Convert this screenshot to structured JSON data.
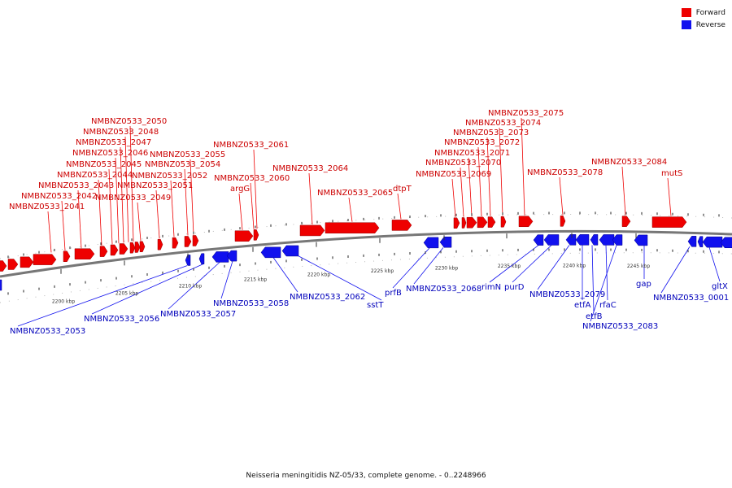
{
  "legend": {
    "forward_label": "Forward",
    "reverse_label": "Reverse",
    "forward_color": "#ee0000",
    "reverse_color": "#1111ee"
  },
  "caption": "Neisseria meningitidis NZ-05/33, complete genome. - 0..2248966",
  "ticks": [
    "2200 kbp",
    "2205 kbp",
    "2210 kbp",
    "2215 kbp",
    "2220 kbp",
    "2225 kbp",
    "2230 kbp",
    "2235 kbp",
    "2240 kbp",
    "2245 kbp"
  ],
  "forward_labels": [
    "NMBNZ0533_2041",
    "NMBNZ0533_2042",
    "NMBNZ0533_2043",
    "NMBNZ0533_2044",
    "NMBNZ0533_2045",
    "NMBNZ0533_2046",
    "NMBNZ0533_2047",
    "NMBNZ0533_2048",
    "NMBNZ0533_2050",
    "NMBNZ0533_2049",
    "NMBNZ0533_2051",
    "NMBNZ0533_2052",
    "NMBNZ0533_2054",
    "NMBNZ0533_2055",
    "argG",
    "NMBNZ0533_2060",
    "NMBNZ0533_2061",
    "NMBNZ0533_2064",
    "NMBNZ0533_2065",
    "dtpT",
    "NMBNZ0533_2069",
    "NMBNZ0533_2070",
    "NMBNZ0533_2071",
    "NMBNZ0533_2072",
    "NMBNZ0533_2073",
    "NMBNZ0533_2074",
    "NMBNZ0533_2075",
    "NMBNZ0533_2078",
    "NMBNZ0533_2084",
    "mutS"
  ],
  "reverse_labels": [
    "NMBNZ0533_2053",
    "NMBNZ0533_2056",
    "NMBNZ0533_2057",
    "NMBNZ0533_2058",
    "NMBNZ0533_2062",
    "sstT",
    "prfB",
    "NMBNZ0533_2068",
    "rimN",
    "purD",
    "NMBNZ0533_2079",
    "etfA",
    "etfB",
    "rfaC",
    "NMBNZ0533_2083",
    "gap",
    "NMBNZ0533_0001",
    "gltX"
  ]
}
